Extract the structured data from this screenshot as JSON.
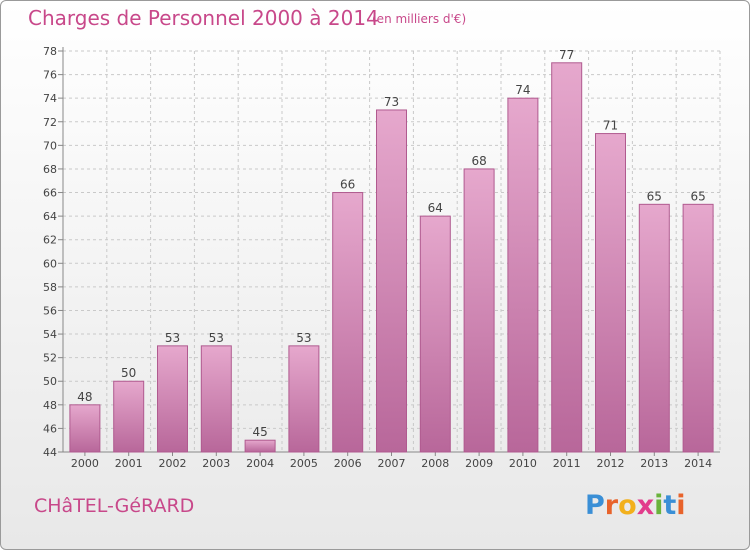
{
  "title": "Charges de Personnel 2000 à 2014",
  "subtitle": "(en milliers d'€)",
  "commune": "CHâTEL-GéRARD",
  "logo": {
    "letters": [
      "P",
      "r",
      "o",
      "x",
      "i",
      "t",
      "i"
    ],
    "colors": [
      "#3a8fd6",
      "#e8632b",
      "#f2b01c",
      "#e23c8c",
      "#6ab33c",
      "#3a8fd6",
      "#e8632b"
    ]
  },
  "colors": {
    "bar_light": "#e6a8cd",
    "bar_dark": "#b8679a",
    "title": "#c8488a",
    "grid": "#c9c9c9"
  },
  "chart_data": {
    "type": "bar",
    "title": "Charges de Personnel 2000 à 2014",
    "subtitle": "(en milliers d'€)",
    "categories": [
      "2000",
      "2001",
      "2002",
      "2003",
      "2004",
      "2005",
      "2006",
      "2007",
      "2008",
      "2009",
      "2010",
      "2011",
      "2012",
      "2013",
      "2014"
    ],
    "values": [
      48,
      50,
      53,
      53,
      45,
      53,
      66,
      73,
      64,
      68,
      74,
      77,
      71,
      65,
      65
    ],
    "ylim": [
      44,
      78
    ],
    "yticks": [
      44,
      46,
      48,
      50,
      52,
      54,
      56,
      58,
      60,
      62,
      64,
      66,
      68,
      70,
      72,
      74,
      76,
      78
    ],
    "grid": true,
    "xlabel": "",
    "ylabel": ""
  }
}
